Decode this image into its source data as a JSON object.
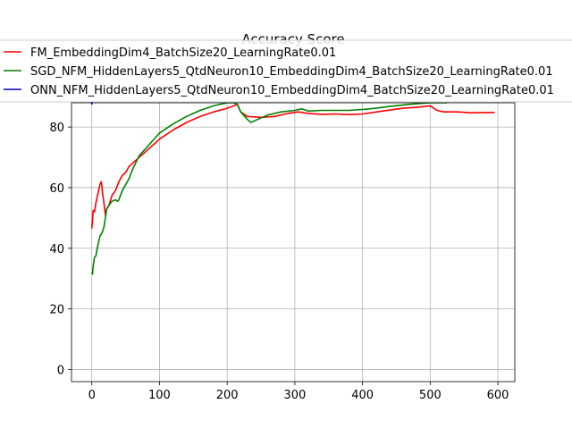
{
  "chart_data": {
    "type": "line",
    "title": "Accuracy Score",
    "xlabel": "",
    "ylabel": "",
    "xlim": [
      -30,
      625
    ],
    "ylim": [
      -4,
      88
    ],
    "xticks": [
      0,
      100,
      200,
      300,
      400,
      500,
      600
    ],
    "yticks": [
      0,
      20,
      40,
      60,
      80
    ],
    "grid": true,
    "legend_position": "top",
    "series": [
      {
        "name": "FM_EmbeddingDim4_BatchSize20_LearningRate0.01",
        "color": "#ff0000",
        "x": [
          0,
          2,
          4,
          6,
          8,
          10,
          12,
          14,
          16,
          18,
          20,
          22,
          25,
          28,
          30,
          35,
          40,
          45,
          50,
          55,
          60,
          70,
          80,
          90,
          100,
          120,
          140,
          160,
          180,
          200,
          210,
          215,
          220,
          230,
          250,
          270,
          290,
          305,
          320,
          340,
          360,
          380,
          400,
          430,
          460,
          480,
          500,
          510,
          520,
          540,
          560,
          580,
          595
        ],
        "y": [
          46.5,
          52.5,
          52,
          55,
          57,
          59,
          61,
          62,
          58,
          55,
          51,
          53,
          54,
          56,
          57.5,
          59,
          62,
          64,
          65,
          67,
          68,
          70,
          72,
          74,
          76,
          79,
          81.5,
          83.5,
          85,
          86.2,
          87,
          87.5,
          85,
          83.5,
          83.2,
          83.5,
          84.5,
          85,
          84.5,
          84.2,
          84.3,
          84.1,
          84.3,
          85.3,
          86.2,
          86.5,
          87,
          85.5,
          85,
          85,
          84.7,
          84.8,
          84.8
        ]
      },
      {
        "name": "SGD_NFM_HiddenLayers5_QtdNeuron10_EmbeddingDim4_BatchSize20_LearningRate0.01",
        "color": "#008000",
        "x": [
          0,
          1,
          2,
          4,
          6,
          8,
          10,
          12,
          15,
          18,
          20,
          22,
          25,
          28,
          30,
          35,
          38,
          40,
          45,
          50,
          55,
          60,
          70,
          80,
          90,
          100,
          120,
          140,
          160,
          180,
          200,
          210,
          215,
          220,
          230,
          235,
          245,
          260,
          280,
          300,
          310,
          320,
          340,
          360,
          380,
          400,
          420,
          440,
          470,
          500,
          520,
          525
        ],
        "y": [
          32,
          31.5,
          34,
          37,
          37.5,
          40,
          42,
          44,
          45,
          47,
          50,
          53,
          54,
          55,
          55.5,
          56,
          55.5,
          56,
          59,
          61,
          63,
          66,
          70.5,
          73,
          75.5,
          78,
          81,
          83.5,
          85.5,
          87,
          88,
          88,
          87.5,
          85,
          82.5,
          81.5,
          82.5,
          84,
          85,
          85.5,
          86,
          85.3,
          85.5,
          85.5,
          85.5,
          85.8,
          86.2,
          86.8,
          87.5,
          88,
          88,
          88
        ]
      },
      {
        "name": "ONN_NFM_HiddenLayers5_QtdNeuron10_EmbeddingDim4_BatchSize20_LearningRate0.01",
        "color": "#0000cc",
        "x": [],
        "y": []
      }
    ]
  }
}
